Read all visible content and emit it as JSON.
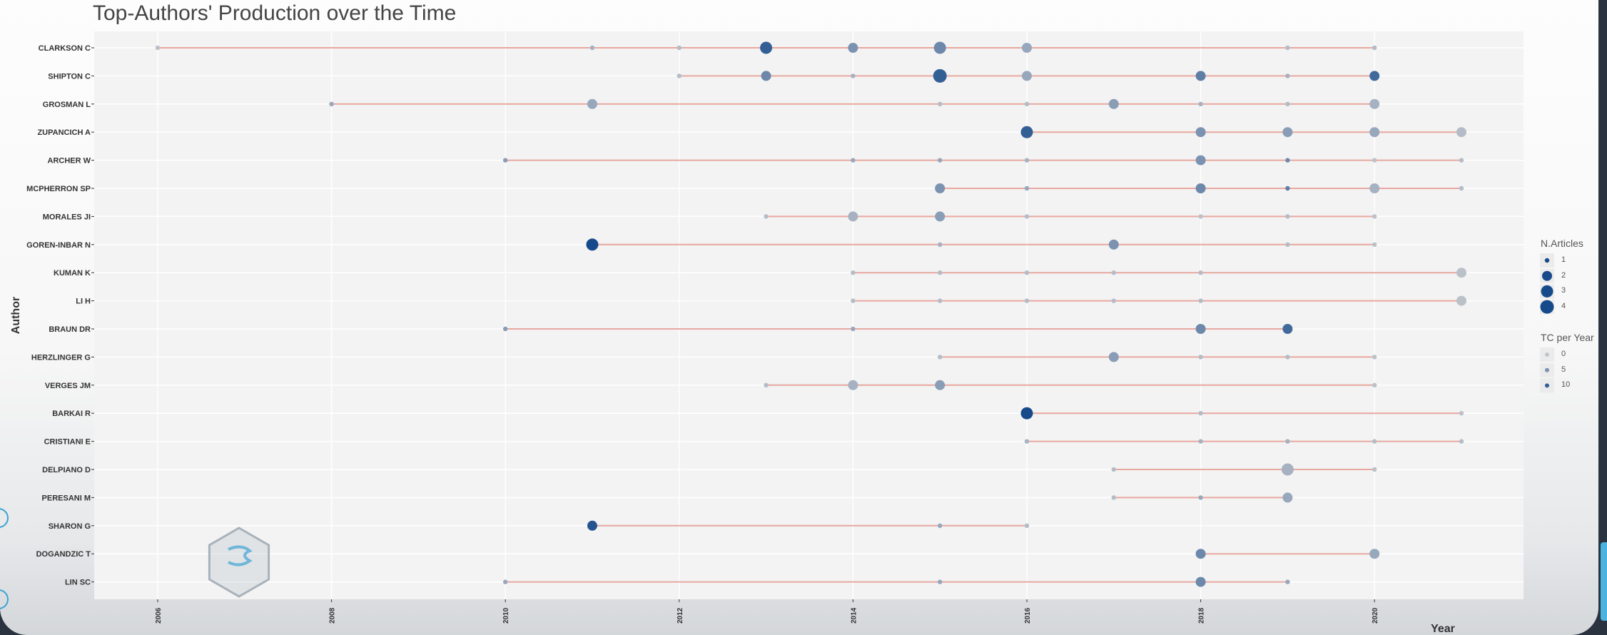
{
  "chart_data": {
    "type": "scatter",
    "title": "Top-Authors' Production over the Time",
    "xlabel": "Year",
    "ylabel": "Author",
    "xlim": [
      2005.8,
      2021.8
    ],
    "x_ticks": [
      "2006",
      "2008",
      "2010",
      "2012",
      "2014",
      "2016",
      "2018",
      "2020"
    ],
    "authors": [
      "CLARKSON C",
      "SHIPTON C",
      "GROSMAN L",
      "ZUPANCICH A",
      "ARCHER W",
      "MCPHERRON SP",
      "MORALES JI",
      "GOREN-INBAR N",
      "KUMAN K",
      "LI H",
      "BRAUN DR",
      "HERZLINGER G",
      "VERGES JM",
      "BARKAI R",
      "CRISTIANI E",
      "DELPIANO D",
      "PERESANI M",
      "SHARON G",
      "DOGANDZIC T",
      "LIN SC"
    ],
    "timelines": [
      {
        "author": "CLARKSON C",
        "start": 2006,
        "end": 2020
      },
      {
        "author": "SHIPTON C",
        "start": 2012,
        "end": 2020
      },
      {
        "author": "GROSMAN L",
        "start": 2008,
        "end": 2020
      },
      {
        "author": "ZUPANCICH A",
        "start": 2016,
        "end": 2021
      },
      {
        "author": "ARCHER W",
        "start": 2010,
        "end": 2021
      },
      {
        "author": "MCPHERRON SP",
        "start": 2015,
        "end": 2021
      },
      {
        "author": "MORALES JI",
        "start": 2013,
        "end": 2020
      },
      {
        "author": "GOREN-INBAR N",
        "start": 2011,
        "end": 2020
      },
      {
        "author": "KUMAN K",
        "start": 2014,
        "end": 2021
      },
      {
        "author": "LI H",
        "start": 2014,
        "end": 2021
      },
      {
        "author": "BRAUN DR",
        "start": 2010,
        "end": 2019
      },
      {
        "author": "HERZLINGER G",
        "start": 2015,
        "end": 2020
      },
      {
        "author": "VERGES JM",
        "start": 2013,
        "end": 2020
      },
      {
        "author": "BARKAI R",
        "start": 2016,
        "end": 2021
      },
      {
        "author": "CRISTIANI E",
        "start": 2016,
        "end": 2021
      },
      {
        "author": "DELPIANO D",
        "start": 2017,
        "end": 2020
      },
      {
        "author": "PERESANI M",
        "start": 2017,
        "end": 2019
      },
      {
        "author": "SHARON G",
        "start": 2011,
        "end": 2016
      },
      {
        "author": "DOGANDZIC T",
        "start": 2018,
        "end": 2020
      },
      {
        "author": "LIN SC",
        "start": 2010,
        "end": 2019
      }
    ],
    "points": [
      {
        "author": "CLARKSON C",
        "year": 2006,
        "n_articles": 1,
        "tc_per_year": 0.5
      },
      {
        "author": "CLARKSON C",
        "year": 2011,
        "n_articles": 1,
        "tc_per_year": 2
      },
      {
        "author": "CLARKSON C",
        "year": 2012,
        "n_articles": 1,
        "tc_per_year": 1
      },
      {
        "author": "CLARKSON C",
        "year": 2013,
        "n_articles": 3,
        "tc_per_year": 10
      },
      {
        "author": "CLARKSON C",
        "year": 2014,
        "n_articles": 2,
        "tc_per_year": 5
      },
      {
        "author": "CLARKSON C",
        "year": 2015,
        "n_articles": 3,
        "tc_per_year": 6
      },
      {
        "author": "CLARKSON C",
        "year": 2016,
        "n_articles": 2,
        "tc_per_year": 3
      },
      {
        "author": "CLARKSON C",
        "year": 2019,
        "n_articles": 1,
        "tc_per_year": 1
      },
      {
        "author": "CLARKSON C",
        "year": 2020,
        "n_articles": 1,
        "tc_per_year": 1
      },
      {
        "author": "SHIPTON C",
        "year": 2012,
        "n_articles": 1,
        "tc_per_year": 1
      },
      {
        "author": "SHIPTON C",
        "year": 2013,
        "n_articles": 2,
        "tc_per_year": 6
      },
      {
        "author": "SHIPTON C",
        "year": 2014,
        "n_articles": 1,
        "tc_per_year": 2
      },
      {
        "author": "SHIPTON C",
        "year": 2015,
        "n_articles": 4,
        "tc_per_year": 10
      },
      {
        "author": "SHIPTON C",
        "year": 2016,
        "n_articles": 2,
        "tc_per_year": 3
      },
      {
        "author": "SHIPTON C",
        "year": 2018,
        "n_articles": 2,
        "tc_per_year": 7
      },
      {
        "author": "SHIPTON C",
        "year": 2019,
        "n_articles": 1,
        "tc_per_year": 2
      },
      {
        "author": "SHIPTON C",
        "year": 2020,
        "n_articles": 2,
        "tc_per_year": 9
      },
      {
        "author": "GROSMAN L",
        "year": 2008,
        "n_articles": 1,
        "tc_per_year": 3
      },
      {
        "author": "GROSMAN L",
        "year": 2011,
        "n_articles": 2,
        "tc_per_year": 3
      },
      {
        "author": "GROSMAN L",
        "year": 2015,
        "n_articles": 1,
        "tc_per_year": 1
      },
      {
        "author": "GROSMAN L",
        "year": 2016,
        "n_articles": 1,
        "tc_per_year": 1
      },
      {
        "author": "GROSMAN L",
        "year": 2017,
        "n_articles": 2,
        "tc_per_year": 4
      },
      {
        "author": "GROSMAN L",
        "year": 2018,
        "n_articles": 1,
        "tc_per_year": 2
      },
      {
        "author": "GROSMAN L",
        "year": 2019,
        "n_articles": 1,
        "tc_per_year": 1
      },
      {
        "author": "GROSMAN L",
        "year": 2020,
        "n_articles": 2,
        "tc_per_year": 2
      },
      {
        "author": "ZUPANCICH A",
        "year": 2016,
        "n_articles": 3,
        "tc_per_year": 10
      },
      {
        "author": "ZUPANCICH A",
        "year": 2018,
        "n_articles": 2,
        "tc_per_year": 5
      },
      {
        "author": "ZUPANCICH A",
        "year": 2019,
        "n_articles": 2,
        "tc_per_year": 4
      },
      {
        "author": "ZUPANCICH A",
        "year": 2020,
        "n_articles": 2,
        "tc_per_year": 3
      },
      {
        "author": "ZUPANCICH A",
        "year": 2021,
        "n_articles": 2,
        "tc_per_year": 1
      },
      {
        "author": "ARCHER W",
        "year": 2010,
        "n_articles": 1,
        "tc_per_year": 4
      },
      {
        "author": "ARCHER W",
        "year": 2014,
        "n_articles": 1,
        "tc_per_year": 3
      },
      {
        "author": "ARCHER W",
        "year": 2015,
        "n_articles": 1,
        "tc_per_year": 3
      },
      {
        "author": "ARCHER W",
        "year": 2016,
        "n_articles": 1,
        "tc_per_year": 2
      },
      {
        "author": "ARCHER W",
        "year": 2018,
        "n_articles": 2,
        "tc_per_year": 5
      },
      {
        "author": "ARCHER W",
        "year": 2019,
        "n_articles": 1,
        "tc_per_year": 6
      },
      {
        "author": "ARCHER W",
        "year": 2020,
        "n_articles": 1,
        "tc_per_year": 0.5
      },
      {
        "author": "ARCHER W",
        "year": 2021,
        "n_articles": 1,
        "tc_per_year": 1
      },
      {
        "author": "MCPHERRON SP",
        "year": 2015,
        "n_articles": 2,
        "tc_per_year": 5
      },
      {
        "author": "MCPHERRON SP",
        "year": 2016,
        "n_articles": 1,
        "tc_per_year": 3
      },
      {
        "author": "MCPHERRON SP",
        "year": 2018,
        "n_articles": 2,
        "tc_per_year": 6
      },
      {
        "author": "MCPHERRON SP",
        "year": 2019,
        "n_articles": 1,
        "tc_per_year": 7
      },
      {
        "author": "MCPHERRON SP",
        "year": 2020,
        "n_articles": 2,
        "tc_per_year": 2
      },
      {
        "author": "MCPHERRON SP",
        "year": 2021,
        "n_articles": 1,
        "tc_per_year": 1
      },
      {
        "author": "MORALES JI",
        "year": 2013,
        "n_articles": 1,
        "tc_per_year": 1
      },
      {
        "author": "MORALES JI",
        "year": 2014,
        "n_articles": 2,
        "tc_per_year": 2
      },
      {
        "author": "MORALES JI",
        "year": 2015,
        "n_articles": 2,
        "tc_per_year": 4
      },
      {
        "author": "MORALES JI",
        "year": 2016,
        "n_articles": 1,
        "tc_per_year": 1
      },
      {
        "author": "MORALES JI",
        "year": 2018,
        "n_articles": 1,
        "tc_per_year": 0.5
      },
      {
        "author": "MORALES JI",
        "year": 2019,
        "n_articles": 1,
        "tc_per_year": 1
      },
      {
        "author": "MORALES JI",
        "year": 2020,
        "n_articles": 1,
        "tc_per_year": 0.5
      },
      {
        "author": "GOREN-INBAR N",
        "year": 2011,
        "n_articles": 3,
        "tc_per_year": 12
      },
      {
        "author": "GOREN-INBAR N",
        "year": 2015,
        "n_articles": 1,
        "tc_per_year": 2
      },
      {
        "author": "GOREN-INBAR N",
        "year": 2017,
        "n_articles": 2,
        "tc_per_year": 5
      },
      {
        "author": "GOREN-INBAR N",
        "year": 2019,
        "n_articles": 1,
        "tc_per_year": 1
      },
      {
        "author": "GOREN-INBAR N",
        "year": 2020,
        "n_articles": 1,
        "tc_per_year": 0.5
      },
      {
        "author": "KUMAN K",
        "year": 2014,
        "n_articles": 1,
        "tc_per_year": 1
      },
      {
        "author": "KUMAN K",
        "year": 2015,
        "n_articles": 1,
        "tc_per_year": 1
      },
      {
        "author": "KUMAN K",
        "year": 2016,
        "n_articles": 1,
        "tc_per_year": 1
      },
      {
        "author": "KUMAN K",
        "year": 2017,
        "n_articles": 1,
        "tc_per_year": 1
      },
      {
        "author": "KUMAN K",
        "year": 2018,
        "n_articles": 1,
        "tc_per_year": 1
      },
      {
        "author": "KUMAN K",
        "year": 2021,
        "n_articles": 2,
        "tc_per_year": 0.5
      },
      {
        "author": "LI H",
        "year": 2014,
        "n_articles": 1,
        "tc_per_year": 1
      },
      {
        "author": "LI H",
        "year": 2015,
        "n_articles": 1,
        "tc_per_year": 1
      },
      {
        "author": "LI H",
        "year": 2016,
        "n_articles": 1,
        "tc_per_year": 1
      },
      {
        "author": "LI H",
        "year": 2017,
        "n_articles": 1,
        "tc_per_year": 1
      },
      {
        "author": "LI H",
        "year": 2018,
        "n_articles": 1,
        "tc_per_year": 1
      },
      {
        "author": "LI H",
        "year": 2021,
        "n_articles": 2,
        "tc_per_year": 0.5
      },
      {
        "author": "BRAUN DR",
        "year": 2010,
        "n_articles": 1,
        "tc_per_year": 4
      },
      {
        "author": "BRAUN DR",
        "year": 2014,
        "n_articles": 1,
        "tc_per_year": 3
      },
      {
        "author": "BRAUN DR",
        "year": 2018,
        "n_articles": 2,
        "tc_per_year": 6
      },
      {
        "author": "BRAUN DR",
        "year": 2019,
        "n_articles": 2,
        "tc_per_year": 9
      },
      {
        "author": "HERZLINGER G",
        "year": 2015,
        "n_articles": 1,
        "tc_per_year": 1
      },
      {
        "author": "HERZLINGER G",
        "year": 2017,
        "n_articles": 2,
        "tc_per_year": 4
      },
      {
        "author": "HERZLINGER G",
        "year": 2018,
        "n_articles": 1,
        "tc_per_year": 1
      },
      {
        "author": "HERZLINGER G",
        "year": 2019,
        "n_articles": 1,
        "tc_per_year": 1
      },
      {
        "author": "HERZLINGER G",
        "year": 2020,
        "n_articles": 1,
        "tc_per_year": 0.5
      },
      {
        "author": "VERGES JM",
        "year": 2013,
        "n_articles": 1,
        "tc_per_year": 1
      },
      {
        "author": "VERGES JM",
        "year": 2014,
        "n_articles": 2,
        "tc_per_year": 2
      },
      {
        "author": "VERGES JM",
        "year": 2015,
        "n_articles": 2,
        "tc_per_year": 4
      },
      {
        "author": "VERGES JM",
        "year": 2020,
        "n_articles": 1,
        "tc_per_year": 0.5
      },
      {
        "author": "BARKAI R",
        "year": 2016,
        "n_articles": 3,
        "tc_per_year": 12
      },
      {
        "author": "BARKAI R",
        "year": 2018,
        "n_articles": 1,
        "tc_per_year": 1
      },
      {
        "author": "BARKAI R",
        "year": 2021,
        "n_articles": 1,
        "tc_per_year": 0.5
      },
      {
        "author": "CRISTIANI E",
        "year": 2016,
        "n_articles": 1,
        "tc_per_year": 2
      },
      {
        "author": "CRISTIANI E",
        "year": 2018,
        "n_articles": 1,
        "tc_per_year": 2
      },
      {
        "author": "CRISTIANI E",
        "year": 2019,
        "n_articles": 1,
        "tc_per_year": 2
      },
      {
        "author": "CRISTIANI E",
        "year": 2020,
        "n_articles": 1,
        "tc_per_year": 1
      },
      {
        "author": "CRISTIANI E",
        "year": 2021,
        "n_articles": 1,
        "tc_per_year": 1
      },
      {
        "author": "DELPIANO D",
        "year": 2017,
        "n_articles": 1,
        "tc_per_year": 1
      },
      {
        "author": "DELPIANO D",
        "year": 2019,
        "n_articles": 3,
        "tc_per_year": 2
      },
      {
        "author": "DELPIANO D",
        "year": 2020,
        "n_articles": 1,
        "tc_per_year": 0.5
      },
      {
        "author": "PERESANI M",
        "year": 2017,
        "n_articles": 1,
        "tc_per_year": 1
      },
      {
        "author": "PERESANI M",
        "year": 2018,
        "n_articles": 1,
        "tc_per_year": 3
      },
      {
        "author": "PERESANI M",
        "year": 2019,
        "n_articles": 2,
        "tc_per_year": 3
      },
      {
        "author": "SHARON G",
        "year": 2011,
        "n_articles": 2,
        "tc_per_year": 11
      },
      {
        "author": "SHARON G",
        "year": 2015,
        "n_articles": 1,
        "tc_per_year": 3
      },
      {
        "author": "SHARON G",
        "year": 2016,
        "n_articles": 1,
        "tc_per_year": 1
      },
      {
        "author": "DOGANDZIC T",
        "year": 2018,
        "n_articles": 2,
        "tc_per_year": 6
      },
      {
        "author": "DOGANDZIC T",
        "year": 2020,
        "n_articles": 2,
        "tc_per_year": 3
      },
      {
        "author": "LIN SC",
        "year": 2010,
        "n_articles": 1,
        "tc_per_year": 3
      },
      {
        "author": "LIN SC",
        "year": 2015,
        "n_articles": 1,
        "tc_per_year": 3
      },
      {
        "author": "LIN SC",
        "year": 2018,
        "n_articles": 2,
        "tc_per_year": 6
      },
      {
        "author": "LIN SC",
        "year": 2019,
        "n_articles": 1,
        "tc_per_year": 3
      }
    ],
    "legend": {
      "position": "right",
      "size_title": "N.Articles",
      "size_values": [
        "1",
        "2",
        "3",
        "4"
      ],
      "color_title": "TC per Year",
      "color_values": [
        "0",
        "5",
        "10"
      ]
    },
    "colors": {
      "segment": "#e8a8a0",
      "point_high": "#174a8a",
      "point_low": "#c2c6cc",
      "panel": "#f3f3f3"
    },
    "grid": true
  }
}
